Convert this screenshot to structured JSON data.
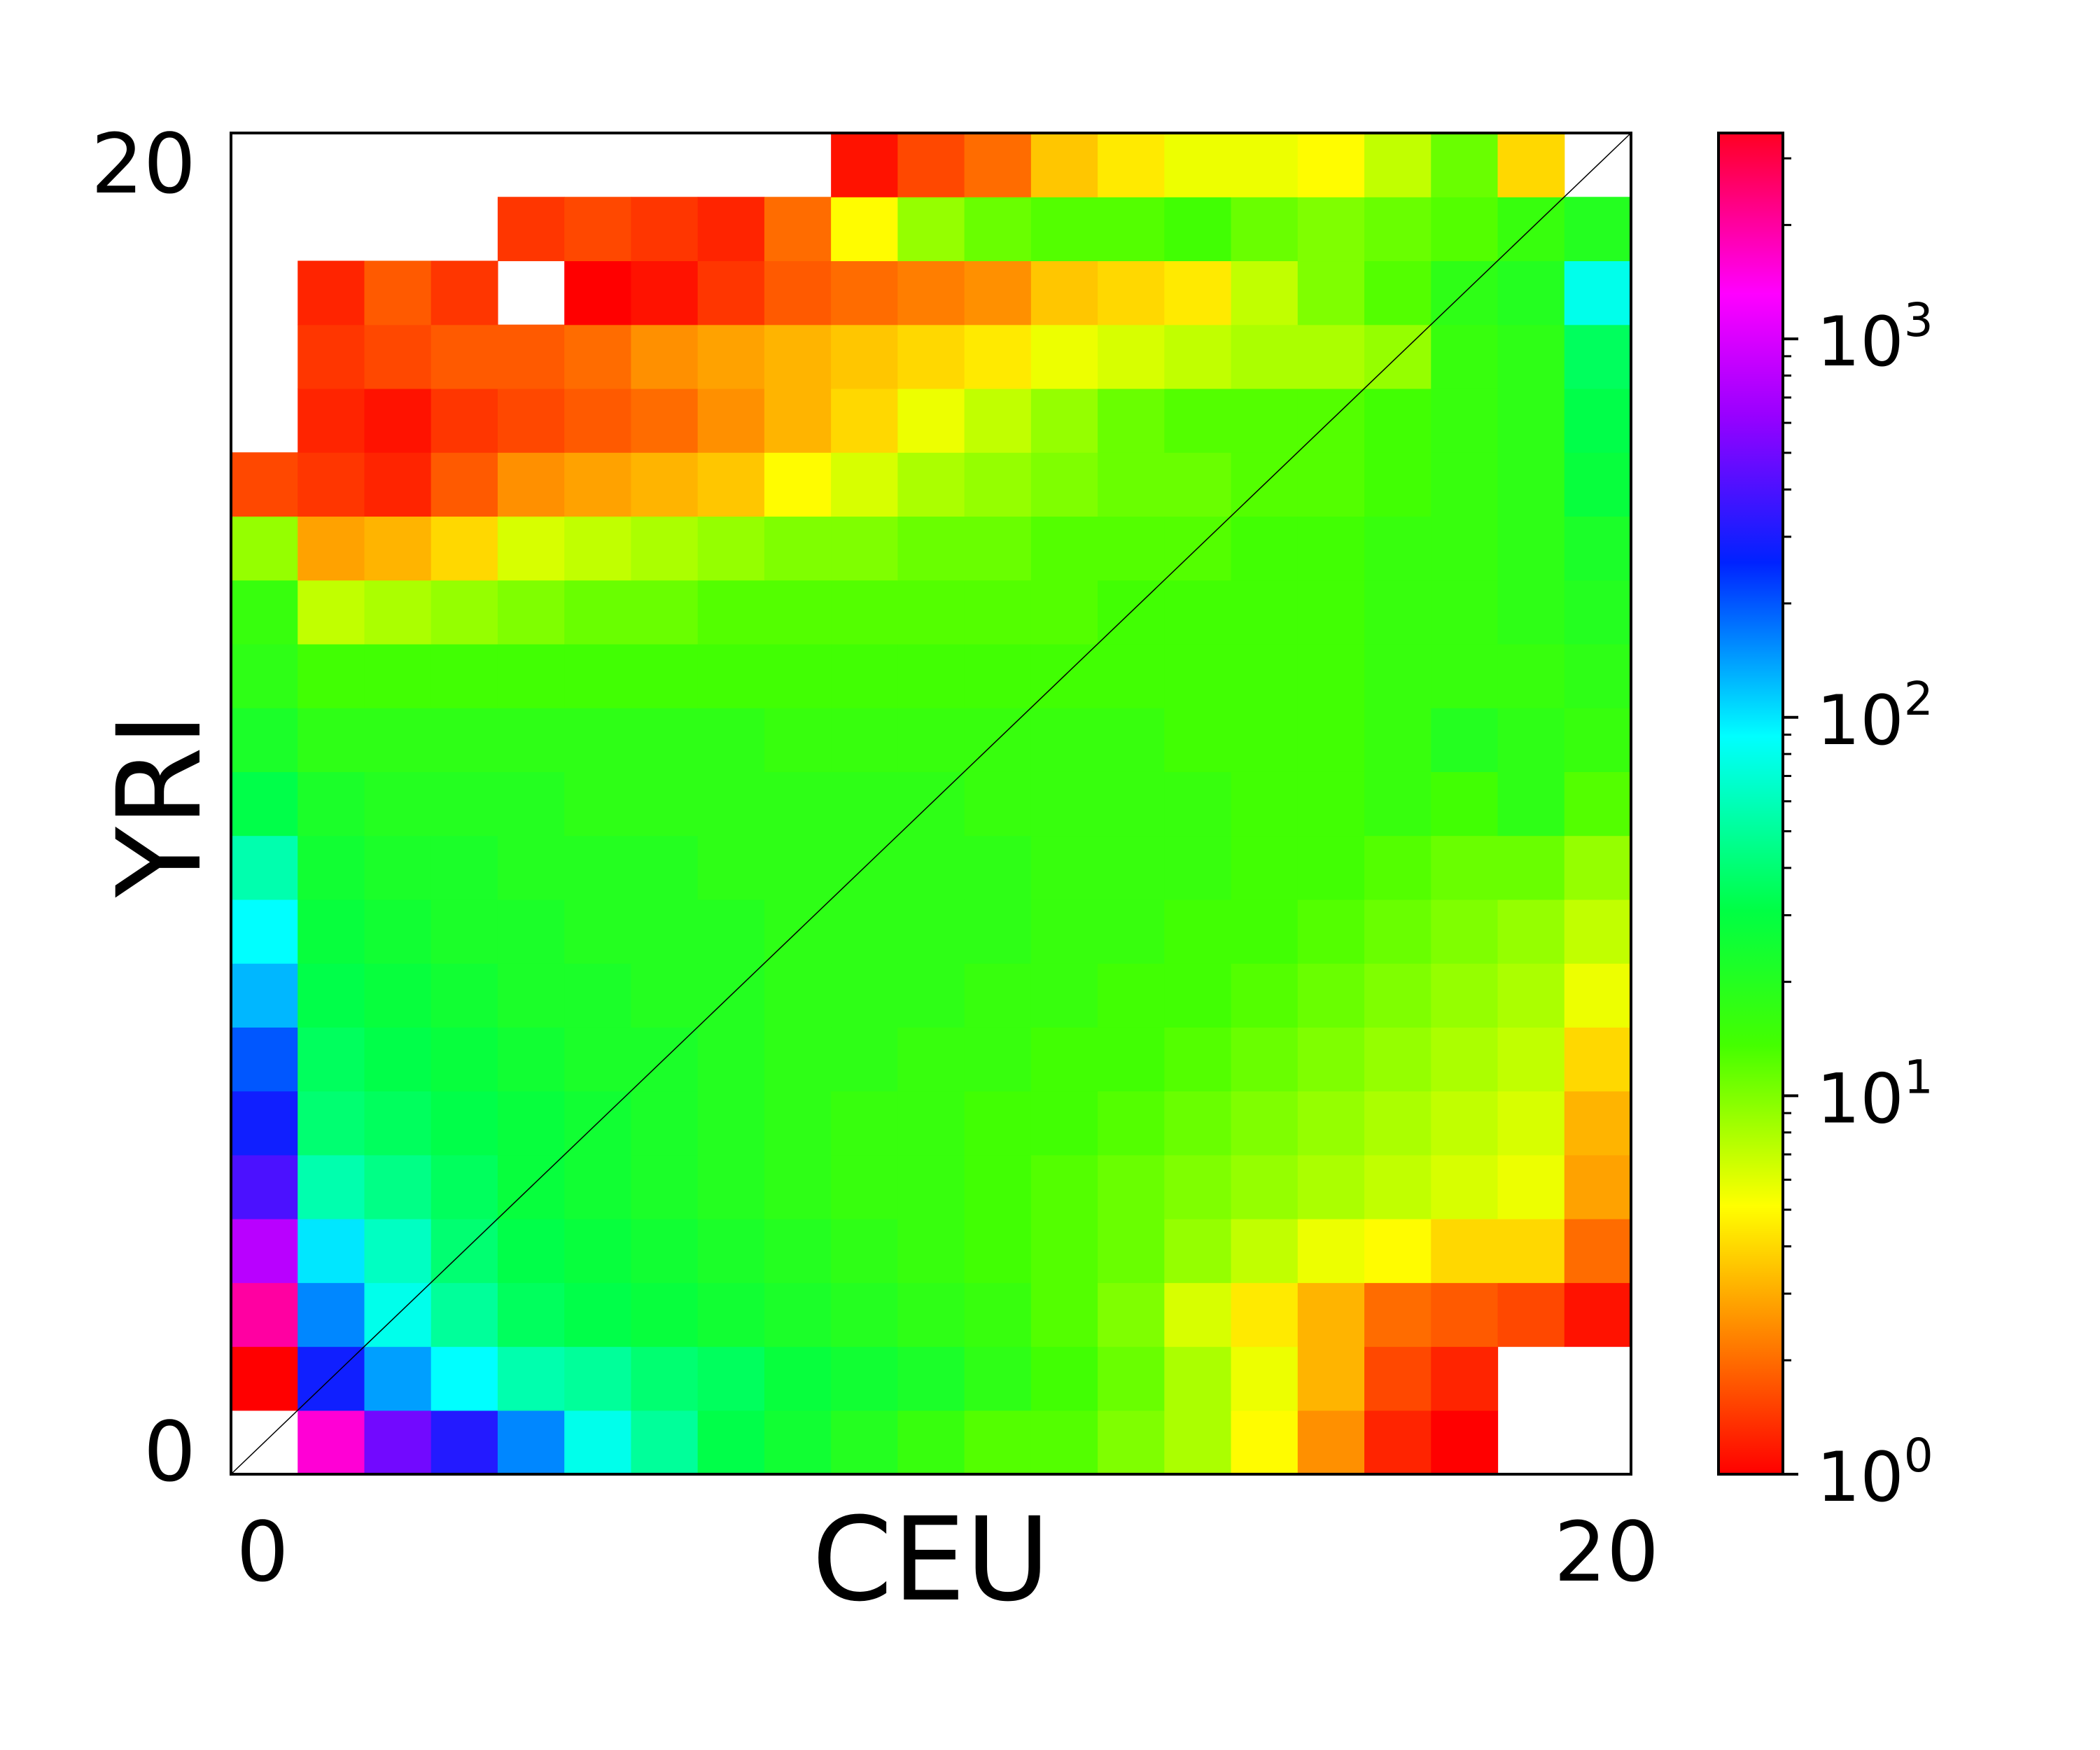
{
  "chart_data": {
    "type": "heatmap",
    "title": "",
    "xlabel": "CEU",
    "ylabel": "YRI",
    "x_ticks": [
      "0",
      "20"
    ],
    "y_ticks": [
      "0",
      "20"
    ],
    "xlim": [
      0,
      20
    ],
    "ylim": [
      0,
      20
    ],
    "colorscale": "log",
    "colorbar_range": [
      1,
      3500
    ],
    "colorbar_ticks": [
      {
        "value": 1,
        "label": "10",
        "exp": "0"
      },
      {
        "value": 10,
        "label": "10",
        "exp": "1"
      },
      {
        "value": 100,
        "label": "10",
        "exp": "2"
      },
      {
        "value": 1000,
        "label": "10",
        "exp": "3"
      }
    ],
    "diagonal_line": true,
    "grid": false,
    "colormap": "gist_rainbow (red at low, through yellow, green, cyan, blue, purple, to magenta and red at high)",
    "cell_values_note": "log10 of counts; null = empty (white) cell",
    "cells_log10": [
      [
        null,
        3.2,
        2.7,
        2.5,
        2.2,
        1.9,
        1.7,
        1.5,
        1.4,
        1.3,
        1.2,
        1.1,
        1.1,
        1.0,
        0.9,
        0.7,
        0.4,
        0.1,
        0.0,
        null,
        null
      ],
      [
        0.0,
        2.45,
        2.15,
        1.95,
        1.75,
        1.7,
        1.6,
        1.55,
        1.45,
        1.4,
        1.35,
        1.25,
        1.15,
        1.05,
        0.9,
        0.75,
        0.5,
        0.2,
        0.1,
        null,
        null
      ],
      [
        3.3,
        2.2,
        1.9,
        1.7,
        1.55,
        1.5,
        1.45,
        1.4,
        1.35,
        1.3,
        1.25,
        1.2,
        1.1,
        1.0,
        0.8,
        0.65,
        0.5,
        0.3,
        0.25,
        0.2,
        0.05
      ],
      [
        2.9,
        2.0,
        1.8,
        1.6,
        1.5,
        1.45,
        1.4,
        1.35,
        1.3,
        1.25,
        1.2,
        1.15,
        1.1,
        1.05,
        0.95,
        0.85,
        0.75,
        0.7,
        0.6,
        0.6,
        0.3
      ],
      [
        2.6,
        1.75,
        1.65,
        1.55,
        1.45,
        1.4,
        1.35,
        1.3,
        1.25,
        1.2,
        1.2,
        1.15,
        1.1,
        1.05,
        1.0,
        0.95,
        0.9,
        0.85,
        0.8,
        0.75,
        0.45
      ],
      [
        2.45,
        1.6,
        1.55,
        1.5,
        1.45,
        1.4,
        1.35,
        1.3,
        1.25,
        1.2,
        1.2,
        1.15,
        1.15,
        1.1,
        1.05,
        1.0,
        0.95,
        0.9,
        0.85,
        0.8,
        0.5
      ],
      [
        2.3,
        1.55,
        1.5,
        1.45,
        1.4,
        1.35,
        1.35,
        1.3,
        1.25,
        1.25,
        1.2,
        1.2,
        1.15,
        1.15,
        1.1,
        1.05,
        1.0,
        0.95,
        0.9,
        0.85,
        0.6
      ],
      [
        2.1,
        1.5,
        1.45,
        1.4,
        1.35,
        1.35,
        1.3,
        1.3,
        1.25,
        1.25,
        1.25,
        1.2,
        1.2,
        1.15,
        1.15,
        1.1,
        1.05,
        1.0,
        0.95,
        0.9,
        0.75
      ],
      [
        1.95,
        1.45,
        1.4,
        1.35,
        1.35,
        1.3,
        1.3,
        1.3,
        1.25,
        1.25,
        1.25,
        1.25,
        1.2,
        1.2,
        1.15,
        1.15,
        1.1,
        1.05,
        1.0,
        0.95,
        0.85
      ],
      [
        1.75,
        1.4,
        1.35,
        1.35,
        1.3,
        1.3,
        1.3,
        1.25,
        1.25,
        1.25,
        1.25,
        1.25,
        1.2,
        1.2,
        1.2,
        1.15,
        1.15,
        1.1,
        1.05,
        1.05,
        0.95
      ],
      [
        1.5,
        1.35,
        1.3,
        1.3,
        1.3,
        1.25,
        1.25,
        1.25,
        1.25,
        1.25,
        1.25,
        1.2,
        1.2,
        1.2,
        1.2,
        1.15,
        1.15,
        1.2,
        1.15,
        1.25,
        1.1
      ],
      [
        1.35,
        1.25,
        1.25,
        1.25,
        1.25,
        1.25,
        1.25,
        1.25,
        1.2,
        1.2,
        1.2,
        1.2,
        1.2,
        1.2,
        1.15,
        1.15,
        1.15,
        1.2,
        1.3,
        1.25,
        1.2
      ],
      [
        1.25,
        1.15,
        1.15,
        1.15,
        1.15,
        1.15,
        1.15,
        1.15,
        1.15,
        1.15,
        1.15,
        1.15,
        1.15,
        1.15,
        1.15,
        1.15,
        1.15,
        1.2,
        1.2,
        1.2,
        1.25
      ],
      [
        1.2,
        0.85,
        0.9,
        0.95,
        1.0,
        1.05,
        1.05,
        1.1,
        1.1,
        1.1,
        1.1,
        1.1,
        1.1,
        1.15,
        1.15,
        1.15,
        1.15,
        1.2,
        1.2,
        1.25,
        1.3
      ],
      [
        0.95,
        0.45,
        0.5,
        0.6,
        0.8,
        0.85,
        0.9,
        0.95,
        1.0,
        1.0,
        1.05,
        1.05,
        1.1,
        1.1,
        1.1,
        1.15,
        1.15,
        1.2,
        1.2,
        1.25,
        1.35
      ],
      [
        0.2,
        0.15,
        0.1,
        0.25,
        0.4,
        0.45,
        0.5,
        0.55,
        0.7,
        0.8,
        0.9,
        0.95,
        1.0,
        1.05,
        1.05,
        1.1,
        1.1,
        1.15,
        1.2,
        1.25,
        1.45
      ],
      [
        null,
        0.1,
        0.05,
        0.15,
        0.2,
        0.25,
        0.3,
        0.4,
        0.5,
        0.6,
        0.75,
        0.85,
        0.95,
        1.05,
        1.1,
        1.1,
        1.1,
        1.15,
        1.2,
        1.25,
        1.5
      ],
      [
        null,
        0.15,
        0.2,
        0.25,
        0.25,
        0.3,
        0.4,
        0.45,
        0.5,
        0.55,
        0.6,
        0.65,
        0.75,
        0.8,
        0.85,
        0.9,
        0.9,
        0.95,
        1.2,
        1.25,
        1.55
      ],
      [
        null,
        0.1,
        0.25,
        0.15,
        null,
        0.0,
        0.05,
        0.15,
        0.25,
        0.3,
        0.35,
        0.4,
        0.55,
        0.6,
        0.65,
        0.85,
        1.0,
        1.1,
        1.25,
        1.3,
        1.9
      ],
      [
        null,
        null,
        null,
        null,
        0.15,
        0.2,
        0.15,
        0.1,
        0.3,
        0.7,
        0.95,
        1.05,
        1.1,
        1.1,
        1.15,
        1.05,
        1.0,
        1.05,
        1.1,
        1.2,
        1.3
      ],
      [
        null,
        null,
        null,
        null,
        null,
        null,
        null,
        null,
        null,
        0.05,
        0.2,
        0.3,
        0.55,
        0.65,
        0.75,
        0.75,
        0.7,
        0.85,
        1.05,
        0.6,
        null
      ]
    ]
  }
}
